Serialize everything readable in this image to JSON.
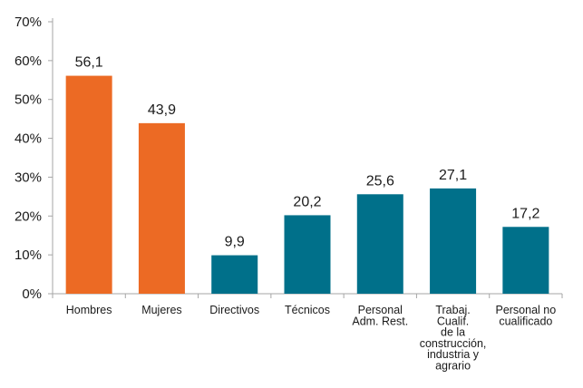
{
  "chart_data": {
    "type": "bar",
    "categories": [
      "Hombres",
      "Mujeres",
      "Directivos",
      "Técnicos",
      "Personal Adm. Rest.",
      "Trabaj. Cualif. de la construcción, industria y agrario",
      "Personal no cualificado"
    ],
    "category_lines": [
      [
        "Hombres"
      ],
      [
        "Mujeres"
      ],
      [
        "Directivos"
      ],
      [
        "Técnicos"
      ],
      [
        "Personal",
        "Adm. Rest."
      ],
      [
        "Trabaj.",
        "Cualif.",
        "de la",
        "construcción,",
        "industria y",
        "agrario"
      ],
      [
        "Personal no",
        "cualificado"
      ]
    ],
    "values": [
      56.1,
      43.9,
      9.9,
      20.2,
      25.6,
      27.1,
      17.2
    ],
    "value_labels": [
      "56,1",
      "43,9",
      "9,9",
      "20,2",
      "25,6",
      "27,1",
      "17,2"
    ],
    "bar_colors": [
      "#ec6a24",
      "#ec6a24",
      "#00708a",
      "#00708a",
      "#00708a",
      "#00708a",
      "#00708a"
    ],
    "ylim": [
      0,
      70
    ],
    "yticks": [
      0,
      10,
      20,
      30,
      40,
      50,
      60,
      70
    ],
    "ytick_labels": [
      "0%",
      "10%",
      "20%",
      "30%",
      "40%",
      "50%",
      "60%",
      "70%"
    ],
    "title": "",
    "xlabel": "",
    "ylabel": "",
    "grid": false,
    "legend": "none",
    "axis_color": "#a6a6a6"
  }
}
